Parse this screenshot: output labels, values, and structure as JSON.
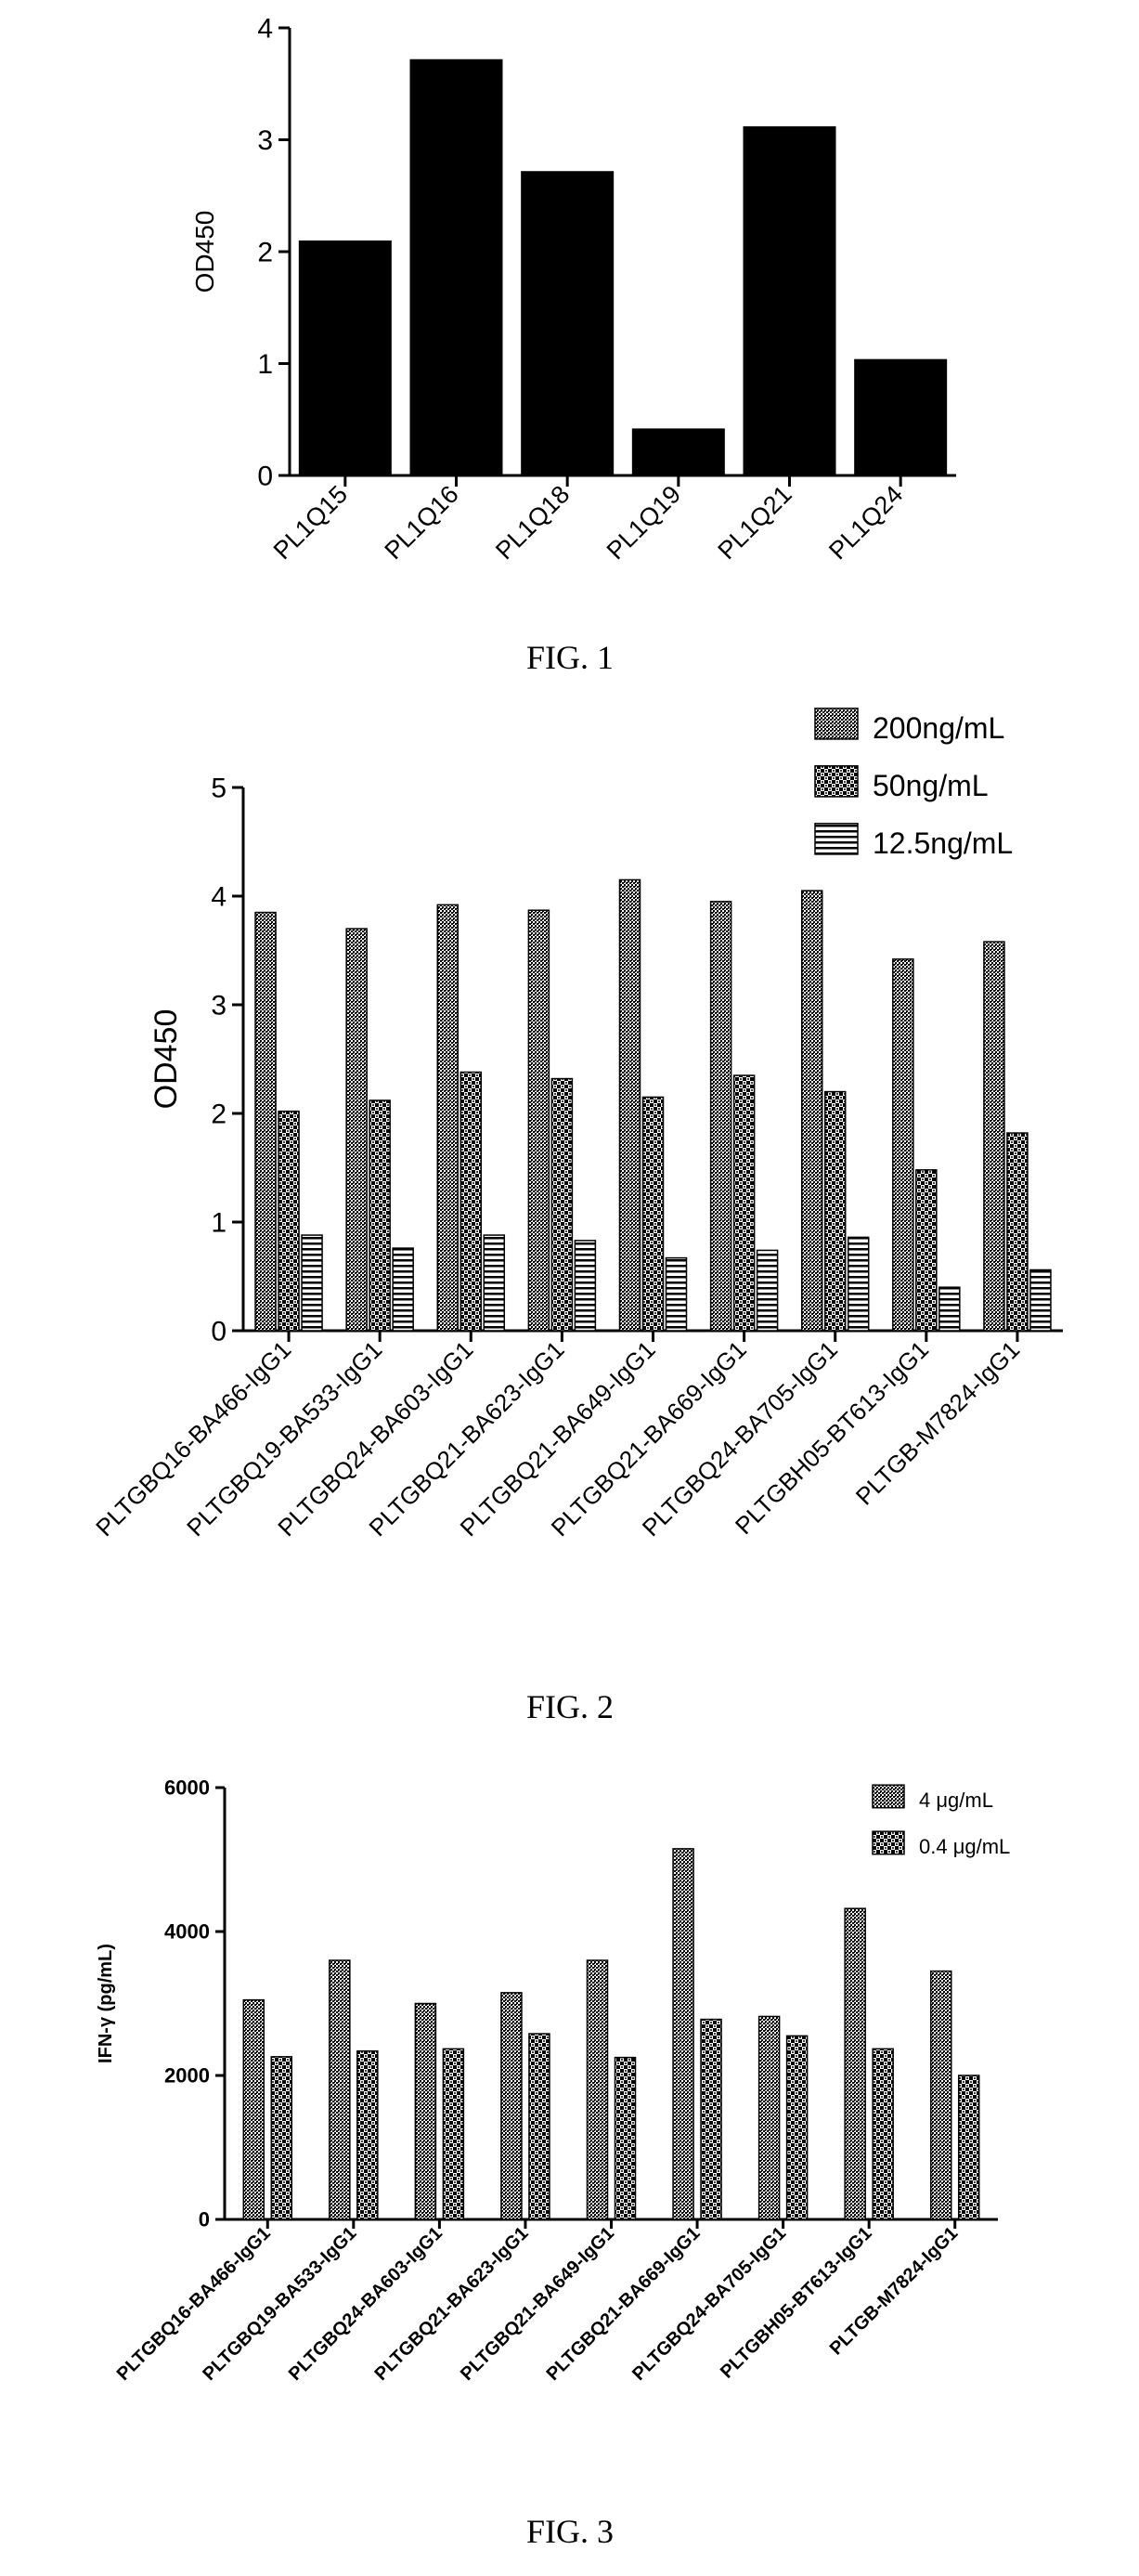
{
  "colors": {
    "ink": "#000000",
    "paper": "#ffffff"
  },
  "chart_data": [
    {
      "type": "bar",
      "caption": "FIG. 1",
      "ylabel": "OD450",
      "ylim": [
        0,
        4
      ],
      "yticks": [
        0,
        1,
        2,
        3,
        4
      ],
      "categories": [
        "PL1Q15",
        "PL1Q16",
        "PL1Q18",
        "PL1Q19",
        "PL1Q21",
        "PL1Q24"
      ],
      "series": [
        {
          "fill": "solid",
          "values": [
            2.1,
            3.72,
            2.72,
            0.42,
            3.12,
            1.04
          ]
        }
      ],
      "grid": false,
      "legend": "none"
    },
    {
      "type": "bar",
      "caption": "FIG. 2",
      "ylabel": "OD450",
      "ylim": [
        0,
        5
      ],
      "yticks": [
        0,
        1,
        2,
        3,
        4,
        5
      ],
      "categories": [
        "PLTGBQ16-BA466-IgG1",
        "PLTGBQ19-BA533-IgG1",
        "PLTGBQ24-BA603-IgG1",
        "PLTGBQ21-BA623-IgG1",
        "PLTGBQ21-BA649-IgG1",
        "PLTGBQ21-BA669-IgG1",
        "PLTGBQ24-BA705-IgG1",
        "PLTGBH05-BT613-IgG1",
        "PLTGB-M7824-IgG1"
      ],
      "series": [
        {
          "name": "200ng/mL",
          "fill": "dense",
          "values": [
            3.85,
            3.7,
            3.92,
            3.87,
            4.15,
            3.95,
            4.05,
            3.42,
            3.58
          ]
        },
        {
          "name": "50ng/mL",
          "fill": "checker",
          "values": [
            2.02,
            2.12,
            2.38,
            2.32,
            2.15,
            2.35,
            2.2,
            1.48,
            1.82
          ]
        },
        {
          "name": "12.5ng/mL",
          "fill": "hlines",
          "values": [
            0.88,
            0.76,
            0.88,
            0.83,
            0.67,
            0.74,
            0.86,
            0.4,
            0.56
          ]
        }
      ],
      "grid": false,
      "legend": "top-right"
    },
    {
      "type": "bar",
      "caption": "FIG. 3",
      "ylabel": "IFN-γ (pg/mL)",
      "ylim": [
        0,
        6000
      ],
      "yticks": [
        0,
        2000,
        4000,
        6000
      ],
      "categories": [
        "PLTGBQ16-BA466-IgG1",
        "PLTGBQ19-BA533-IgG1",
        "PLTGBQ24-BA603-IgG1",
        "PLTGBQ21-BA623-IgG1",
        "PLTGBQ21-BA649-IgG1",
        "PLTGBQ21-BA669-IgG1",
        "PLTGBQ24-BA705-IgG1",
        "PLTGBH05-BT613-IgG1",
        "PLTGB-M7824-IgG1"
      ],
      "series": [
        {
          "name": "4 μg/mL",
          "fill": "dense",
          "values": [
            3050,
            3600,
            3000,
            3150,
            3600,
            5150,
            2820,
            4320,
            3450
          ]
        },
        {
          "name": "0.4 μg/mL",
          "fill": "checker",
          "values": [
            2260,
            2340,
            2370,
            2580,
            2250,
            2780,
            2550,
            2370,
            2000
          ]
        }
      ],
      "grid": false,
      "legend": "top-right"
    }
  ]
}
